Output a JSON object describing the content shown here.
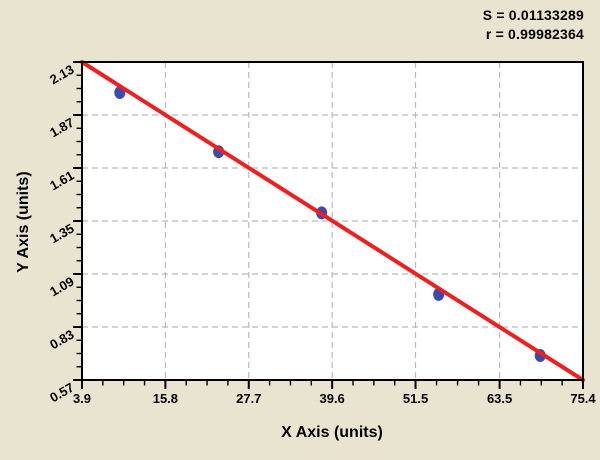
{
  "chart_data": {
    "type": "scatter",
    "title": "",
    "xlabel": "X Axis (units)",
    "ylabel": "Y Axis (units)",
    "x_ticks": [
      3.9,
      15.8,
      27.7,
      39.6,
      51.5,
      63.5,
      75.4
    ],
    "y_ticks": [
      2.13,
      1.87,
      1.61,
      1.35,
      1.09,
      0.83,
      0.57
    ],
    "xlim": [
      3.9,
      75.4
    ],
    "ylim": [
      0.57,
      2.13
    ],
    "minor_tick_divisions": 4,
    "grid": "dashed",
    "legend": "none",
    "points": [
      {
        "x": 9.3,
        "y": 1.98
      },
      {
        "x": 23.4,
        "y": 1.69
      },
      {
        "x": 38.1,
        "y": 1.39
      },
      {
        "x": 54.8,
        "y": 0.99
      },
      {
        "x": 69.3,
        "y": 0.69
      }
    ],
    "fit_line": {
      "x1": 3.9,
      "y1": 2.13,
      "x2": 75.4,
      "y2": 0.57
    },
    "annotations": {
      "s_value": "S = 0.01133289",
      "r_value": "r = 0.99982364"
    },
    "colors": {
      "background": "#e8e4d0",
      "plot_background": "#ffffff",
      "fit_line": "#ef1f1f",
      "points": "#3b4aae",
      "grid": "#b9b9b9",
      "axis": "#000000"
    }
  }
}
